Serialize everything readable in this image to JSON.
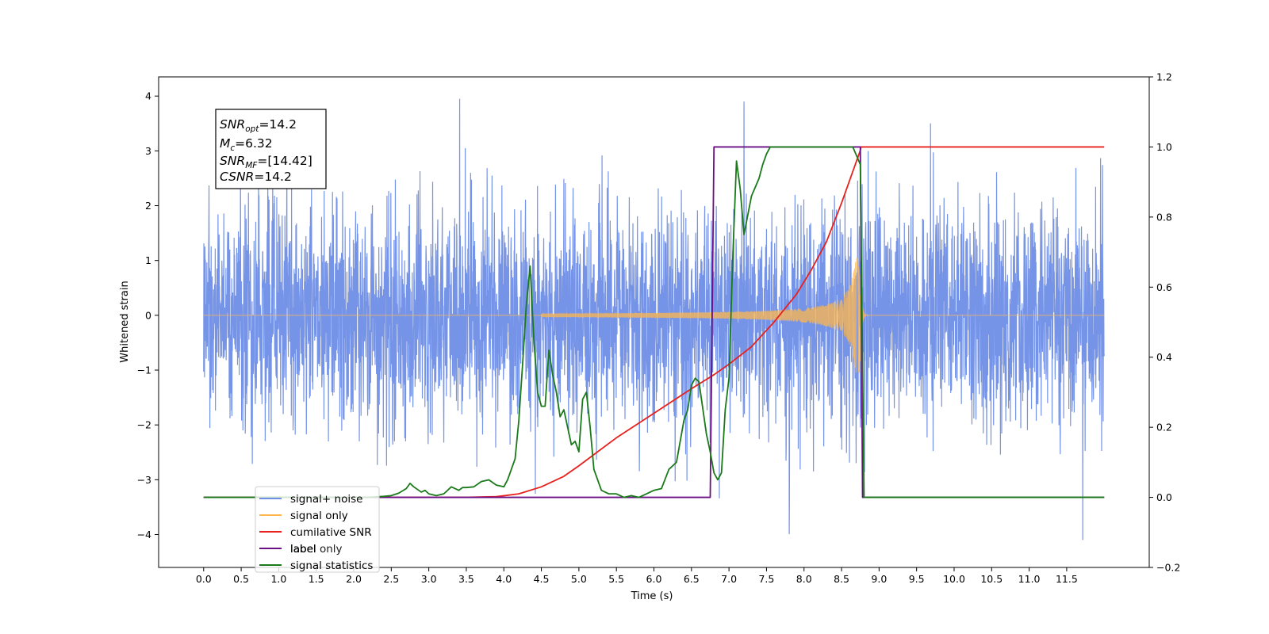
{
  "chart_data": {
    "type": "line",
    "xlabel": "Time (s)",
    "ylabel": "Whitened strain",
    "xlim": [
      -0.6,
      12.6
    ],
    "ylim": [
      -4.6,
      4.35
    ],
    "y2lim": [
      -0.2,
      1.2
    ],
    "x_ticks": [
      "0.0",
      "0.5",
      "1.0",
      "1.5",
      "2.0",
      "2.5",
      "3.0",
      "3.5",
      "4.0",
      "4.5",
      "5.0",
      "5.5",
      "6.0",
      "6.5",
      "7.0",
      "7.5",
      "8.0",
      "8.5",
      "9.0",
      "9.5",
      "10.0",
      "10.5",
      "11.0",
      "11.5"
    ],
    "y_ticks": [
      "4",
      "3",
      "2",
      "1",
      "0",
      "−1",
      "−2",
      "−3",
      "−4"
    ],
    "y2_ticks": [
      "1.2",
      "1.0",
      "0.8",
      "0.6",
      "0.4",
      "0.2",
      "0.0",
      "−0.2"
    ],
    "annotation": {
      "snr_opt": {
        "main": "SNR",
        "sub": "opt",
        "value": "=14.2"
      },
      "mc": {
        "main": "M",
        "sub": "c",
        "value": "=6.32"
      },
      "snr_mf": {
        "main": "SNR",
        "sub": "MF",
        "value": "=[14.42]"
      },
      "csnr": {
        "main": "CSNR",
        "value": "=14.2"
      }
    },
    "series": [
      {
        "name": "signal+ noise",
        "color": "#6f8ee6",
        "axis": "left",
        "description_values": {
          "x_range": [
            0.0,
            12.0
          ],
          "typical_envelope": [
            -2.2,
            2.4
          ],
          "extreme_max": 3.95,
          "extreme_min": -4.1
        }
      },
      {
        "name": "signal only",
        "color": "#ffb74d",
        "axis": "left",
        "chirp": {
          "start": 4.5,
          "merger": 8.75,
          "start_amp": 0.03,
          "peak_amp": 1.05,
          "ringdown_end": 8.85
        }
      },
      {
        "name": "cumilative SNR",
        "color": "#e8201c",
        "axis": "right",
        "x": [
          0.0,
          3.0,
          3.5,
          3.9,
          4.2,
          4.5,
          4.8,
          5.0,
          5.5,
          6.0,
          6.5,
          6.8,
          7.0,
          7.3,
          7.6,
          7.9,
          8.1,
          8.3,
          8.5,
          8.65,
          8.75,
          8.76,
          12.0
        ],
        "values": [
          0.0,
          0.0,
          0.0,
          0.002,
          0.01,
          0.03,
          0.06,
          0.09,
          0.17,
          0.24,
          0.31,
          0.35,
          0.38,
          0.43,
          0.5,
          0.58,
          0.65,
          0.73,
          0.84,
          0.93,
          0.99,
          1.0,
          1.0
        ]
      },
      {
        "name": "label",
        "color": "#6a0f84",
        "axis": "right",
        "x": [
          0.0,
          6.75,
          6.8,
          8.75,
          8.78,
          12.0
        ],
        "values": [
          0.0,
          0.0,
          1.0,
          1.0,
          0.0,
          0.0
        ]
      },
      {
        "name": "label only",
        "color": "#dddddd",
        "axis": "right",
        "x": [],
        "values": []
      },
      {
        "name": "signal statistics",
        "color": "#1a7a1a",
        "axis": "right",
        "x": [
          0.0,
          0.1,
          0.2,
          0.3,
          0.5,
          1.0,
          1.5,
          2.0,
          2.2,
          2.4,
          2.5,
          2.6,
          2.7,
          2.75,
          2.8,
          2.9,
          2.95,
          3.0,
          3.1,
          3.2,
          3.3,
          3.4,
          3.45,
          3.5,
          3.6,
          3.7,
          3.8,
          3.9,
          4.0,
          4.05,
          4.1,
          4.15,
          4.2,
          4.25,
          4.3,
          4.35,
          4.4,
          4.45,
          4.5,
          4.55,
          4.6,
          4.65,
          4.7,
          4.75,
          4.8,
          4.85,
          4.9,
          4.95,
          5.0,
          5.05,
          5.1,
          5.15,
          5.2,
          5.25,
          5.3,
          5.4,
          5.5,
          5.6,
          5.7,
          5.8,
          5.9,
          6.0,
          6.1,
          6.2,
          6.3,
          6.4,
          6.45,
          6.5,
          6.55,
          6.6,
          6.7,
          6.75,
          6.8,
          6.85,
          6.9,
          6.95,
          7.0,
          7.05,
          7.1,
          7.15,
          7.2,
          7.3,
          7.4,
          7.45,
          7.5,
          7.55,
          7.6,
          7.65,
          7.7,
          7.75,
          7.8,
          7.85,
          7.9,
          7.95,
          8.0,
          8.05,
          8.5,
          8.65,
          8.75,
          8.8,
          8.85,
          12.0
        ],
        "values": [
          0.0,
          0.0,
          0.0,
          0.0,
          0.0,
          0.0,
          0.0,
          0.0,
          0.0,
          0.003,
          0.005,
          0.012,
          0.025,
          0.04,
          0.03,
          0.015,
          0.02,
          0.01,
          0.005,
          0.01,
          0.03,
          0.02,
          0.028,
          0.028,
          0.03,
          0.045,
          0.05,
          0.035,
          0.03,
          0.05,
          0.08,
          0.11,
          0.22,
          0.38,
          0.55,
          0.66,
          0.45,
          0.3,
          0.26,
          0.26,
          0.42,
          0.35,
          0.3,
          0.23,
          0.25,
          0.2,
          0.15,
          0.16,
          0.13,
          0.28,
          0.3,
          0.2,
          0.08,
          0.05,
          0.02,
          0.01,
          0.01,
          0.0,
          0.005,
          0.0,
          0.01,
          0.02,
          0.025,
          0.08,
          0.1,
          0.22,
          0.25,
          0.32,
          0.34,
          0.33,
          0.18,
          0.13,
          0.07,
          0.05,
          0.07,
          0.25,
          0.34,
          0.68,
          0.96,
          0.88,
          0.75,
          0.86,
          0.91,
          0.95,
          0.98,
          1.0,
          1.0,
          1.0,
          1.0,
          1.0,
          1.0,
          1.0,
          1.0,
          1.0,
          1.0,
          1.0,
          1.0,
          1.0,
          0.95,
          0.0,
          0.0,
          0.0
        ]
      }
    ],
    "legend_position": "lower-left"
  }
}
